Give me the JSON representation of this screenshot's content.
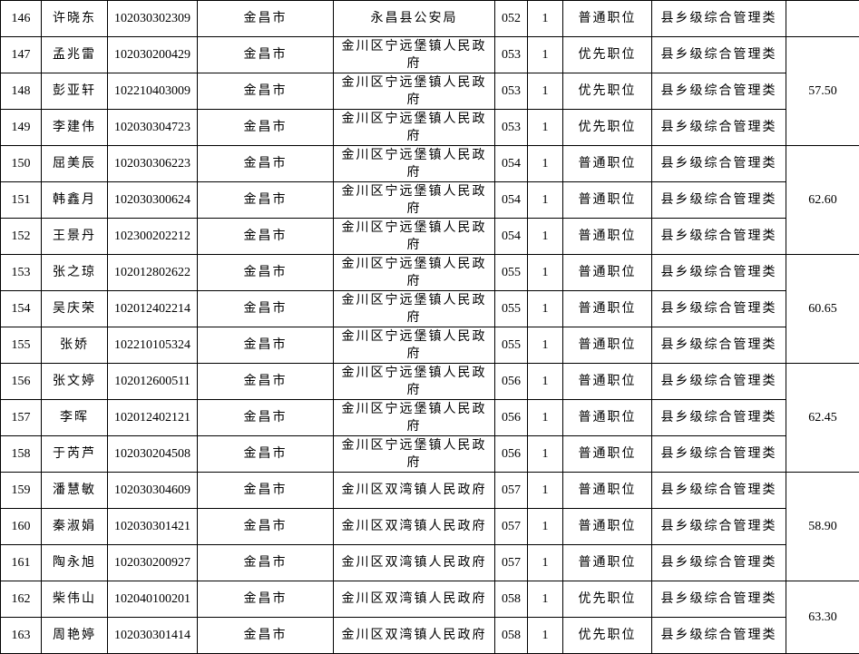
{
  "table": {
    "groups": [
      {
        "rows": [
          [
            "146",
            "许晓东",
            "102030302309",
            "金昌市",
            "永昌县公安局",
            "052",
            "1",
            "普通职位",
            "县乡级综合管理类"
          ]
        ]
      },
      {
        "score": "57.50",
        "rows": [
          [
            "147",
            "孟兆雷",
            "102030200429",
            "金昌市",
            "金川区宁远堡镇人民政府",
            "053",
            "1",
            "优先职位",
            "县乡级综合管理类"
          ],
          [
            "148",
            "彭亚轩",
            "102210403009",
            "金昌市",
            "金川区宁远堡镇人民政府",
            "053",
            "1",
            "优先职位",
            "县乡级综合管理类"
          ],
          [
            "149",
            "李建伟",
            "102030304723",
            "金昌市",
            "金川区宁远堡镇人民政府",
            "053",
            "1",
            "优先职位",
            "县乡级综合管理类"
          ]
        ]
      },
      {
        "score": "62.60",
        "rows": [
          [
            "150",
            "屈美辰",
            "102030306223",
            "金昌市",
            "金川区宁远堡镇人民政府",
            "054",
            "1",
            "普通职位",
            "县乡级综合管理类"
          ],
          [
            "151",
            "韩鑫月",
            "102030300624",
            "金昌市",
            "金川区宁远堡镇人民政府",
            "054",
            "1",
            "普通职位",
            "县乡级综合管理类"
          ],
          [
            "152",
            "王景丹",
            "102300202212",
            "金昌市",
            "金川区宁远堡镇人民政府",
            "054",
            "1",
            "普通职位",
            "县乡级综合管理类"
          ]
        ]
      },
      {
        "score": "60.65",
        "rows": [
          [
            "153",
            "张之琼",
            "102012802622",
            "金昌市",
            "金川区宁远堡镇人民政府",
            "055",
            "1",
            "普通职位",
            "县乡级综合管理类"
          ],
          [
            "154",
            "吴庆荣",
            "102012402214",
            "金昌市",
            "金川区宁远堡镇人民政府",
            "055",
            "1",
            "普通职位",
            "县乡级综合管理类"
          ],
          [
            "155",
            "张娇",
            "102210105324",
            "金昌市",
            "金川区宁远堡镇人民政府",
            "055",
            "1",
            "普通职位",
            "县乡级综合管理类"
          ]
        ]
      },
      {
        "score": "62.45",
        "rows": [
          [
            "156",
            "张文婷",
            "102012600511",
            "金昌市",
            "金川区宁远堡镇人民政府",
            "056",
            "1",
            "普通职位",
            "县乡级综合管理类"
          ],
          [
            "157",
            "李晖",
            "102012402121",
            "金昌市",
            "金川区宁远堡镇人民政府",
            "056",
            "1",
            "普通职位",
            "县乡级综合管理类"
          ],
          [
            "158",
            "于芮芦",
            "102030204508",
            "金昌市",
            "金川区宁远堡镇人民政府",
            "056",
            "1",
            "普通职位",
            "县乡级综合管理类"
          ]
        ]
      },
      {
        "score": "58.90",
        "rows": [
          [
            "159",
            "潘慧敏",
            "102030304609",
            "金昌市",
            "金川区双湾镇人民政府",
            "057",
            "1",
            "普通职位",
            "县乡级综合管理类"
          ],
          [
            "160",
            "秦淑娟",
            "102030301421",
            "金昌市",
            "金川区双湾镇人民政府",
            "057",
            "1",
            "普通职位",
            "县乡级综合管理类"
          ],
          [
            "161",
            "陶永旭",
            "102030200927",
            "金昌市",
            "金川区双湾镇人民政府",
            "057",
            "1",
            "普通职位",
            "县乡级综合管理类"
          ]
        ]
      },
      {
        "score": "63.30",
        "rows": [
          [
            "162",
            "柴伟山",
            "102040100201",
            "金昌市",
            "金川区双湾镇人民政府",
            "058",
            "1",
            "优先职位",
            "县乡级综合管理类"
          ],
          [
            "163",
            "周艳婷",
            "102030301414",
            "金昌市",
            "金川区双湾镇人民政府",
            "058",
            "1",
            "优先职位",
            "县乡级综合管理类"
          ]
        ]
      }
    ]
  }
}
